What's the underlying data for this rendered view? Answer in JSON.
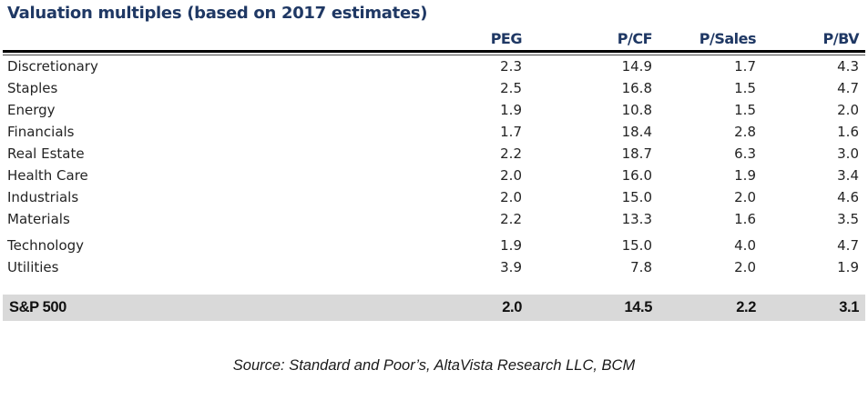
{
  "chart_data": {
    "type": "table",
    "title": "Valuation multiples (based on 2017 estimates)",
    "columns": [
      "PEG",
      "P/CF",
      "P/Sales",
      "P/BV"
    ],
    "rows": [
      {
        "label": "Discretionary",
        "values": [
          "2.3",
          "14.9",
          "1.7",
          "4.3"
        ]
      },
      {
        "label": "Staples",
        "values": [
          "2.5",
          "16.8",
          "1.5",
          "4.7"
        ]
      },
      {
        "label": "Energy",
        "values": [
          "1.9",
          "10.8",
          "1.5",
          "2.0"
        ]
      },
      {
        "label": "Financials",
        "values": [
          "1.7",
          "18.4",
          "2.8",
          "1.6"
        ]
      },
      {
        "label": "Real Estate",
        "values": [
          "2.2",
          "18.7",
          "6.3",
          "3.0"
        ]
      },
      {
        "label": "Health Care",
        "values": [
          "2.0",
          "16.0",
          "1.9",
          "3.4"
        ]
      },
      {
        "label": "Industrials",
        "values": [
          "2.0",
          "15.0",
          "2.0",
          "4.6"
        ]
      },
      {
        "label": "Materials",
        "values": [
          "2.2",
          "13.3",
          "1.6",
          "3.5"
        ]
      },
      {
        "label": "Technology",
        "values": [
          "1.9",
          "15.0",
          "4.0",
          "4.7"
        ]
      },
      {
        "label": "Utilities",
        "values": [
          "3.9",
          "7.8",
          "2.0",
          "1.9"
        ]
      }
    ],
    "summary": {
      "label": "S&P 500",
      "values": [
        "2.0",
        "14.5",
        "2.2",
        "3.1"
      ]
    },
    "layout_hints": {
      "value_alignment": "right",
      "summary_row_highlighted": true
    }
  },
  "source": "Source: Standard and Poor’s, AltaVista Research LLC, BCM",
  "colors": {
    "title_text": "#1F3864",
    "header_text": "#1F3864",
    "body_text": "#242424",
    "summary_bg": "#D9D9D9",
    "summary_text": "#111111",
    "rule": "#000000"
  }
}
